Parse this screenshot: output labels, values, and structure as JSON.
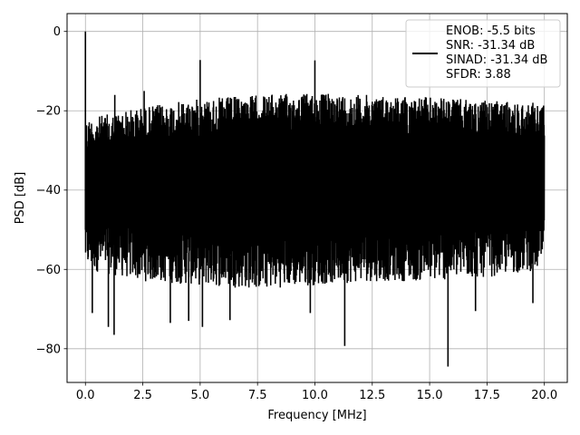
{
  "chart_data": {
    "type": "line",
    "title": "",
    "xlabel": "Frequency [MHz]",
    "ylabel": "PSD [dB]",
    "xlim": [
      -0.8,
      21.0
    ],
    "ylim": [
      -88.5,
      4.5
    ],
    "xticks": [
      0.0,
      2.5,
      5.0,
      7.5,
      10.0,
      12.5,
      15.0,
      17.5,
      20.0
    ],
    "xtick_labels": [
      "0.0",
      "2.5",
      "5.0",
      "7.5",
      "10.0",
      "12.5",
      "15.0",
      "17.5",
      "20.0"
    ],
    "yticks": [
      0,
      -20,
      -40,
      -60,
      -80
    ],
    "ytick_labels": [
      "0",
      "−20",
      "−40",
      "−60",
      "−80"
    ],
    "grid": true,
    "legend_position": "top-right",
    "legend_lines": [
      "ENOB: -5.5 bits",
      "SNR: -31.34 dB",
      "SINAD: -31.34 dB",
      "SFDR: 3.88"
    ],
    "series": [
      {
        "color": "#000000",
        "noise_floor": {
          "x": [
            0.0,
            2.5,
            5.0,
            7.5,
            10.0,
            12.5,
            15.0,
            17.5,
            20.0
          ],
          "upper": [
            -22,
            -19,
            -17,
            -16,
            -15.5,
            -16,
            -16.5,
            -17.5,
            -18
          ],
          "lower": [
            -60,
            -63,
            -64,
            -65,
            -64,
            -63,
            -63,
            -62,
            -60
          ]
        },
        "peaks": [
          {
            "x": 0.0,
            "y": 0.0
          },
          {
            "x": 1.28,
            "y": -16
          },
          {
            "x": 2.56,
            "y": -15
          },
          {
            "x": 5.0,
            "y": -7.2
          },
          {
            "x": 10.0,
            "y": -7.3
          }
        ],
        "dips": [
          {
            "x": 0.3,
            "y": -71
          },
          {
            "x": 1.25,
            "y": -76.5
          },
          {
            "x": 1.0,
            "y": -74.5
          },
          {
            "x": 3.7,
            "y": -73.5
          },
          {
            "x": 4.5,
            "y": -73
          },
          {
            "x": 5.1,
            "y": -74.5
          },
          {
            "x": 6.3,
            "y": -72.8
          },
          {
            "x": 9.8,
            "y": -71
          },
          {
            "x": 11.3,
            "y": -79.3
          },
          {
            "x": 15.8,
            "y": -84.5
          },
          {
            "x": 17.0,
            "y": -70.5
          },
          {
            "x": 19.5,
            "y": -68.5
          }
        ]
      }
    ]
  }
}
